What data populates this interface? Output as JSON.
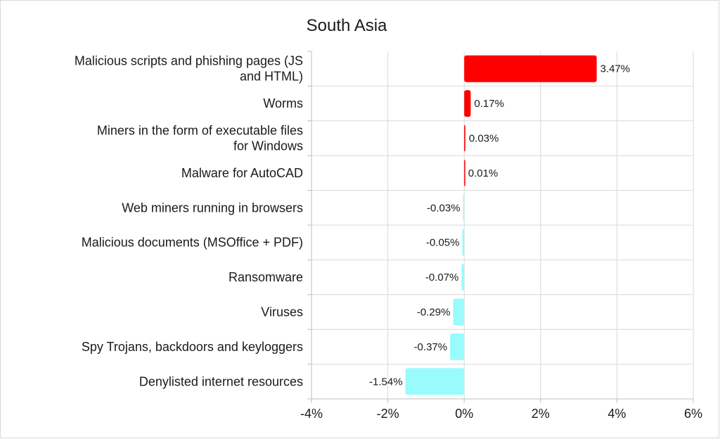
{
  "chart_data": {
    "type": "bar",
    "orientation": "horizontal",
    "title": "South Asia",
    "categories": [
      [
        "Malicious scripts and phishing pages (JS",
        "and HTML)"
      ],
      [
        "Worms"
      ],
      [
        "Miners in the form of executable files",
        "for Windows"
      ],
      [
        "Malware for AutoCAD"
      ],
      [
        "Web miners running in browsers"
      ],
      [
        "Malicious documents (MSOffice + PDF)"
      ],
      [
        "Ransomware"
      ],
      [
        "Viruses"
      ],
      [
        "Spy Trojans, backdoors and keyloggers"
      ],
      [
        "Denylisted internet resources"
      ]
    ],
    "values": [
      3.47,
      0.17,
      0.03,
      0.01,
      -0.03,
      -0.05,
      -0.07,
      -0.29,
      -0.37,
      -1.54
    ],
    "value_labels": [
      "3.47%",
      "0.17%",
      "0.03%",
      "0.01%",
      "-0.03%",
      "-0.05%",
      "-0.07%",
      "-0.29%",
      "-0.37%",
      "-1.54%"
    ],
    "xlim": [
      -4,
      6
    ],
    "xticks": [
      -4,
      -2,
      0,
      2,
      4,
      6
    ],
    "xtick_labels": [
      "-4%",
      "-2%",
      "0%",
      "2%",
      "4%",
      "6%"
    ],
    "grid": true,
    "colors": {
      "positive": "#ff0000",
      "negative": "#99fbfb",
      "grid": "#d9d9d9",
      "axis": "#bfbfbf"
    }
  }
}
